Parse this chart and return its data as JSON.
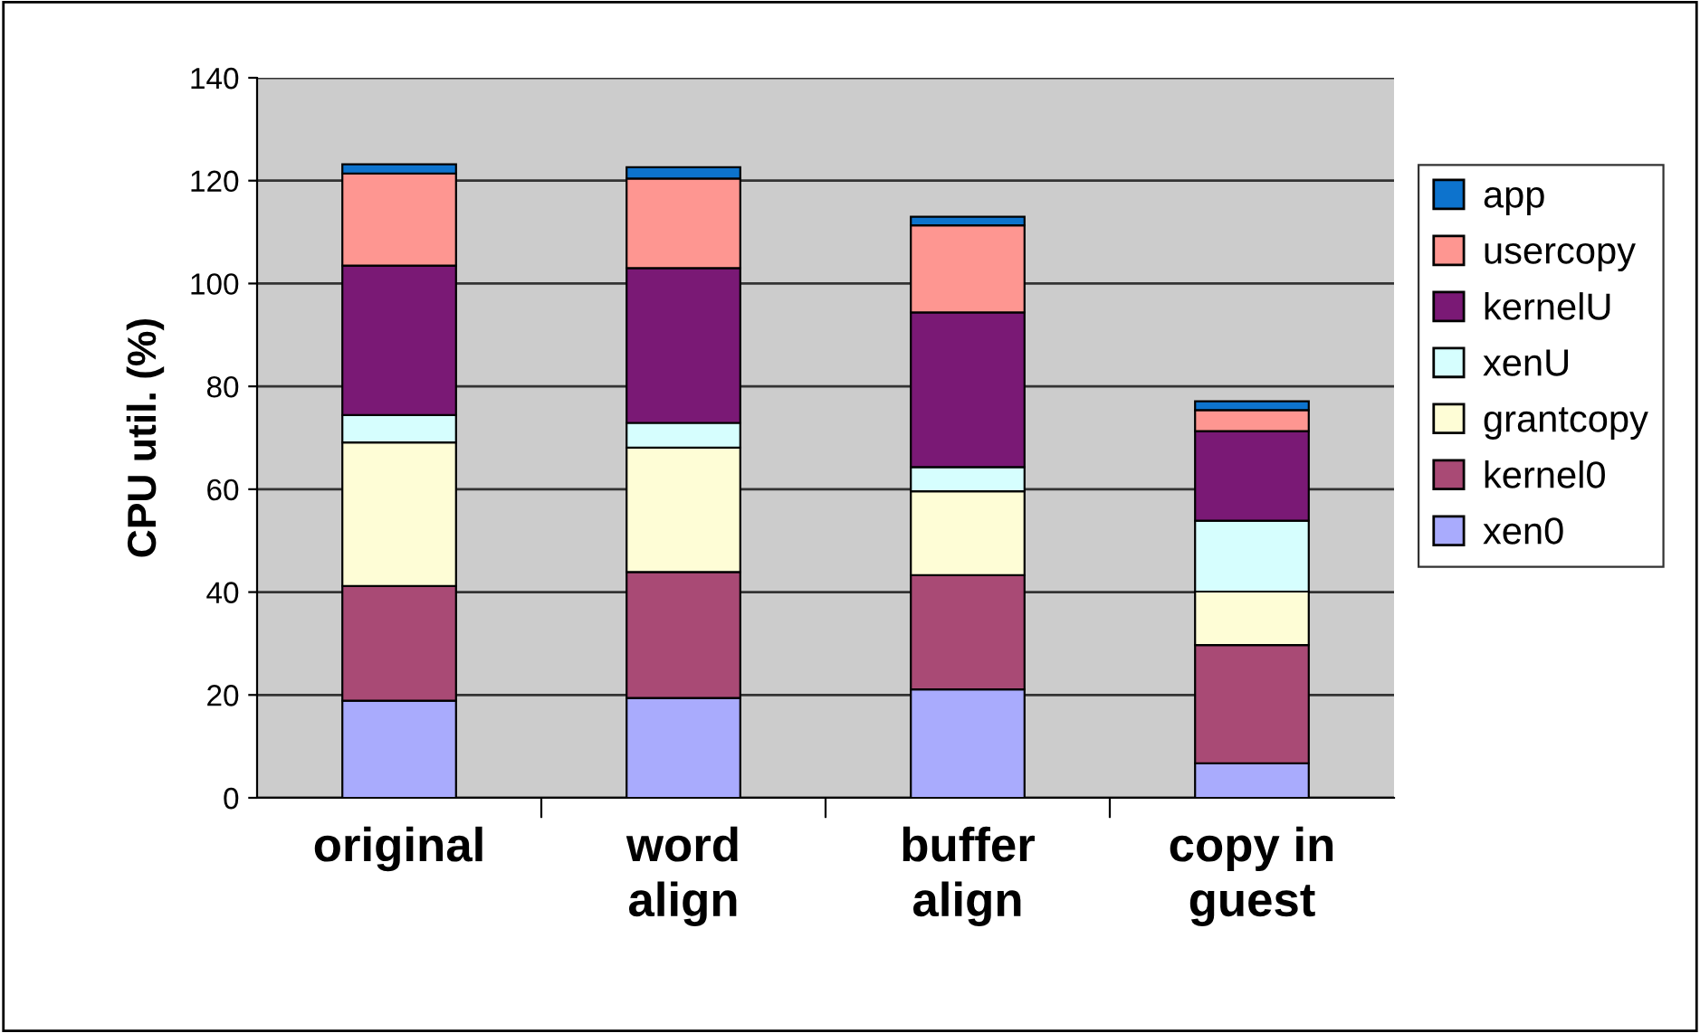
{
  "chart_data": {
    "type": "bar",
    "stacked": true,
    "ylabel": "CPU util. (%)",
    "categories": [
      "original",
      "word\nalign",
      "buffer\nalign",
      "copy in\nguest"
    ],
    "series": [
      {
        "name": "xen0",
        "color": "#a9abfd",
        "values": [
          18.9,
          19.4,
          21.1,
          6.7
        ]
      },
      {
        "name": "kernel0",
        "color": "#a94a75",
        "values": [
          22.3,
          24.5,
          22.2,
          23.0
        ]
      },
      {
        "name": "grantcopy",
        "color": "#fefdd6",
        "values": [
          27.9,
          24.2,
          16.3,
          10.4
        ]
      },
      {
        "name": "xenU",
        "color": "#d6fefe",
        "values": [
          5.3,
          4.8,
          4.7,
          13.8
        ]
      },
      {
        "name": "kernelU",
        "color": "#7a1975",
        "values": [
          29.1,
          30.1,
          30.1,
          17.4
        ]
      },
      {
        "name": "usercopy",
        "color": "#fe9691",
        "values": [
          17.9,
          17.4,
          16.9,
          4.1
        ]
      },
      {
        "name": "app",
        "color": "#0d73cd",
        "values": [
          1.8,
          2.2,
          1.7,
          1.7
        ]
      }
    ],
    "ylim": [
      0,
      140
    ],
    "yticks": [
      0,
      20,
      40,
      60,
      80,
      100,
      120,
      140
    ],
    "grid": "y",
    "legend": "right"
  }
}
